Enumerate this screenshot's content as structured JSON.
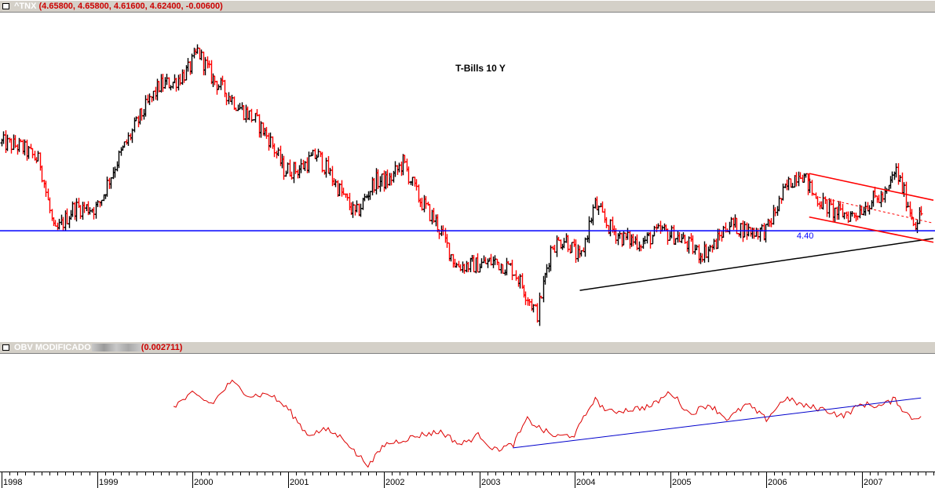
{
  "header": {
    "symbol": "^TNX",
    "values": "(4.65800, 4.65800, 4.61600, 4.62400, -0.00600)"
  },
  "indicator_header": {
    "name": "OBV MODIFICADO",
    "value": "(0.002711)"
  },
  "colors": {
    "up_bar": "#000000",
    "down_bar": "#ff0000",
    "support_line": "#0000ff",
    "trend_line": "#000000",
    "channel": "#ff0000",
    "obv_line": "#dd0000",
    "obv_trend": "#0000cc"
  },
  "chart_data": [
    {
      "type": "ohlc",
      "title": "T-Bills 10 Y",
      "series": [
        {
          "name": "^TNX",
          "x": [
            1998.0,
            1998.2,
            1998.4,
            1998.55,
            1998.75,
            1999.0,
            1999.2,
            1999.45,
            1999.65,
            1999.8,
            1999.95,
            2000.05,
            2000.2,
            2000.35,
            2000.5,
            2000.65,
            2000.8,
            2000.95,
            2001.1,
            2001.3,
            2001.5,
            2001.7,
            2001.9,
            2002.05,
            2002.2,
            2002.35,
            2002.55,
            2002.75,
            2002.95,
            2003.15,
            2003.35,
            2003.5,
            2003.6,
            2003.75,
            2003.9,
            2004.05,
            2004.2,
            2004.35,
            2004.5,
            2004.7,
            2004.9,
            2005.1,
            2005.3,
            2005.45,
            2005.6,
            2005.8,
            2006.0,
            2006.2,
            2006.35,
            2006.5,
            2006.7,
            2006.9,
            2007.1,
            2007.25,
            2007.35,
            2007.45,
            2007.55,
            2007.62
          ],
          "y": [
            5.55,
            5.5,
            5.3,
            4.35,
            4.7,
            4.7,
            5.3,
            5.9,
            6.3,
            6.35,
            6.5,
            6.75,
            6.4,
            6.2,
            6.0,
            5.85,
            5.6,
            5.2,
            5.2,
            5.4,
            5.0,
            4.6,
            5.05,
            5.05,
            5.3,
            4.85,
            4.5,
            3.95,
            3.95,
            4.0,
            3.9,
            3.55,
            3.3,
            4.2,
            4.3,
            4.0,
            4.75,
            4.45,
            4.3,
            4.25,
            4.4,
            4.3,
            4.1,
            4.2,
            4.5,
            4.4,
            4.4,
            4.95,
            5.2,
            4.85,
            4.65,
            4.6,
            4.8,
            4.85,
            5.2,
            4.85,
            4.5,
            4.62
          ]
        }
      ],
      "annotations": [
        "4.40"
      ],
      "support_level": 4.4,
      "ylim": [
        3.2,
        7.0
      ],
      "xlim": [
        1998.0,
        2007.75
      ]
    },
    {
      "type": "line",
      "series": [
        {
          "name": "OBV MODIFICADO",
          "x": [
            1999.8,
            2000.0,
            2000.2,
            2000.4,
            2000.6,
            2000.8,
            2001.0,
            2001.2,
            2001.4,
            2001.6,
            2001.7,
            2001.85,
            2002.0,
            2002.2,
            2002.4,
            2002.6,
            2002.8,
            2003.0,
            2003.15,
            2003.35,
            2003.5,
            2003.65,
            2003.8,
            2004.0,
            2004.2,
            2004.35,
            2004.6,
            2004.8,
            2005.0,
            2005.2,
            2005.4,
            2005.6,
            2005.8,
            2006.0,
            2006.2,
            2006.4,
            2006.6,
            2006.8,
            2007.0,
            2007.2,
            2007.35,
            2007.45,
            2007.55,
            2007.62
          ],
          "y": [
            0.58,
            0.7,
            0.6,
            0.82,
            0.68,
            0.7,
            0.55,
            0.3,
            0.35,
            0.25,
            0.12,
            0.0,
            0.2,
            0.25,
            0.3,
            0.33,
            0.2,
            0.3,
            0.15,
            0.2,
            0.45,
            0.35,
            0.28,
            0.3,
            0.65,
            0.52,
            0.55,
            0.58,
            0.72,
            0.5,
            0.6,
            0.45,
            0.6,
            0.45,
            0.66,
            0.58,
            0.55,
            0.48,
            0.6,
            0.58,
            0.65,
            0.52,
            0.45,
            0.5
          ]
        }
      ]
    }
  ],
  "x_axis": {
    "labels": [
      "1998",
      "1999",
      "2000",
      "2001",
      "2002",
      "2003",
      "2004",
      "2005",
      "2006",
      "2007"
    ]
  }
}
